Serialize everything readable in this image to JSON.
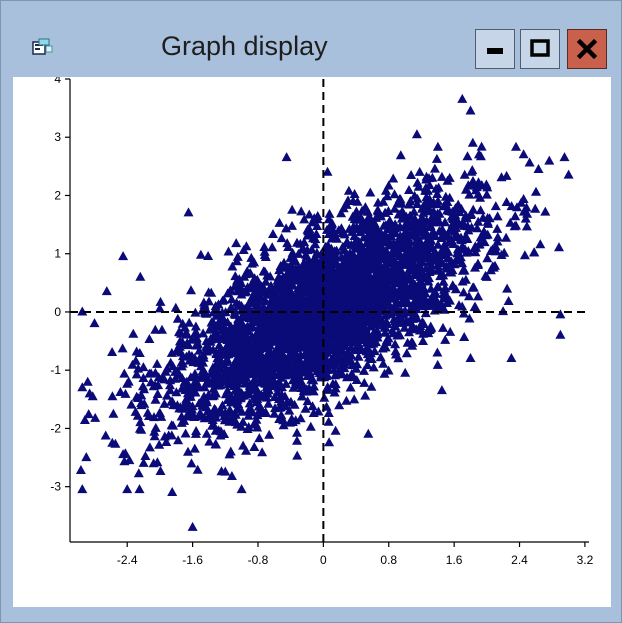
{
  "window": {
    "title": "Graph display",
    "icon": "graph-window-icon",
    "controls": [
      "minimize-icon",
      "maximize-icon",
      "close-icon"
    ],
    "colors": {
      "frame": "#a9c0dc",
      "close_button": "#c8604c",
      "plot_background": "#ffffff",
      "marker": "#0a0a78"
    }
  },
  "chart_data": {
    "type": "scatter",
    "marker": "triangle",
    "x_ticks": [
      "-2.4",
      "-1.6",
      "-0.8",
      "0",
      "0.8",
      "1.6",
      "2.4",
      "3.2"
    ],
    "y_ticks": [
      "-3",
      "-2",
      "-1",
      "0",
      "1",
      "2",
      "3",
      "4"
    ],
    "xlim": [
      -3.1,
      3.25
    ],
    "ylim": [
      -3.95,
      4
    ],
    "reference_lines": [
      "x = 0 (dashed)",
      "y = 0 (dashed)"
    ],
    "grid": false,
    "correlation": 0.7,
    "n_points": 3500,
    "points": [
      [
        -2.95,
        -3.05
      ],
      [
        -2.4,
        -3.05
      ],
      [
        -2.25,
        -3.05
      ],
      [
        -1.85,
        -3.1
      ],
      [
        -1.0,
        -3.05
      ],
      [
        -1.6,
        -3.7
      ],
      [
        -2.2,
        -2.6
      ],
      [
        -2.45,
        -2.45
      ],
      [
        -2.9,
        -2.5
      ],
      [
        -1.2,
        -2.75
      ],
      [
        1.45,
        -1.35
      ],
      [
        1.8,
        -0.8
      ],
      [
        2.3,
        -0.8
      ],
      [
        2.9,
        -0.4
      ],
      [
        2.9,
        -0.05
      ],
      [
        1.7,
        3.65
      ],
      [
        1.8,
        3.45
      ],
      [
        2.45,
        2.7
      ],
      [
        2.95,
        2.65
      ],
      [
        3.0,
        2.35
      ],
      [
        -0.45,
        2.65
      ],
      [
        0.05,
        2.4
      ],
      [
        -1.65,
        1.7
      ],
      [
        -2.65,
        0.35
      ],
      [
        -2.45,
        0.95
      ],
      [
        -2.95,
        0.0
      ],
      [
        -2.8,
        -0.2
      ],
      [
        -2.95,
        -1.3
      ],
      [
        0.15,
        -2.05
      ],
      [
        0.55,
        -2.1
      ]
    ],
    "cloud": {
      "x_mean": 0.0,
      "y_mean": 0.0,
      "sd_x": 0.95,
      "sd_y": 0.95,
      "x_range": [
        -3.0,
        3.0
      ],
      "y_range": [
        -3.7,
        3.7
      ]
    }
  }
}
